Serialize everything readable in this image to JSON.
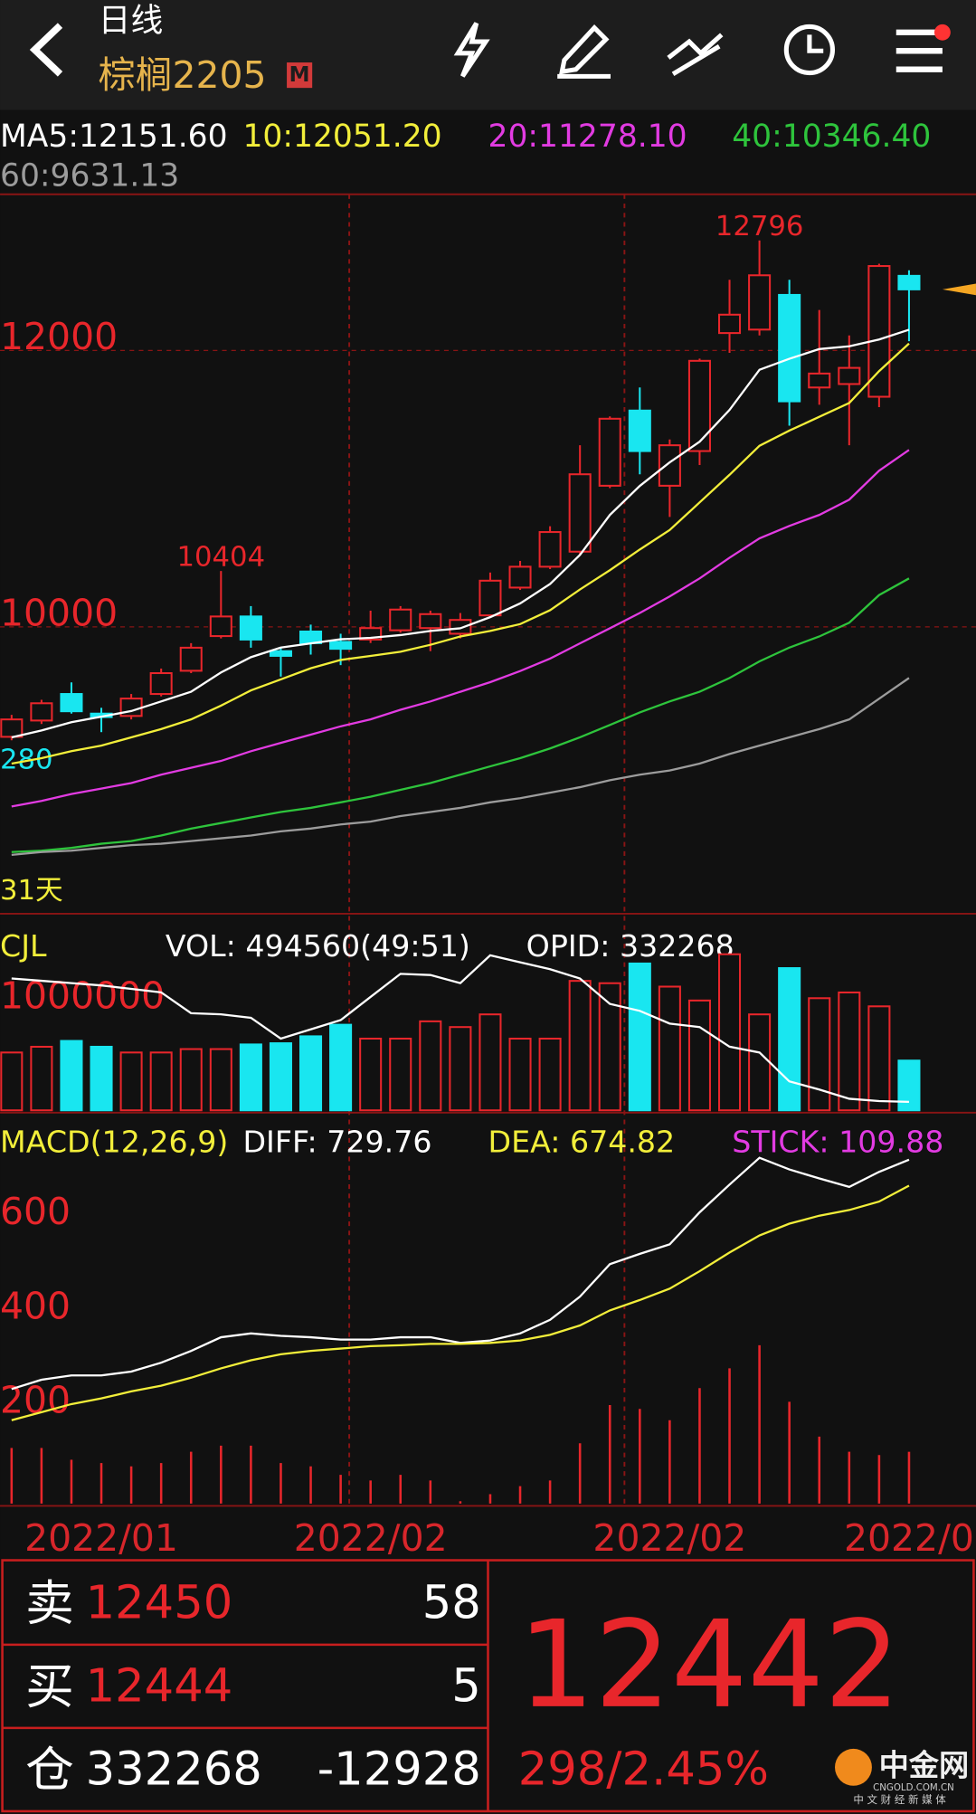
{
  "header": {
    "title": "日线",
    "symbol": "棕榈2205",
    "badge": "M"
  },
  "chart_data": [
    {
      "type": "candlestick",
      "categories": [
        null,
        null,
        null,
        "2022/01",
        null,
        null,
        null,
        null,
        null,
        null,
        null,
        null,
        "2022/02",
        null,
        null,
        null,
        null,
        null,
        null,
        null,
        null,
        null,
        "2022/02",
        null,
        null,
        null,
        null,
        null,
        null,
        null,
        "2022/0"
      ],
      "open": [
        9204,
        9322,
        9514,
        9372,
        9355,
        9514,
        9682,
        9933,
        10075,
        9824,
        9966,
        9891,
        9908,
        9975,
        9991,
        9950,
        10083,
        10284,
        10435,
        10544,
        11021,
        11565,
        11021,
        11272,
        12126,
        12151,
        12402,
        11732,
        11757,
        11665,
        12540
      ],
      "high": [
        9363,
        9472,
        9598,
        9414,
        9514,
        9698,
        9882,
        10404,
        10150,
        9849,
        10016,
        9950,
        10117,
        10150,
        10117,
        10100,
        10393,
        10477,
        10728,
        11314,
        11523,
        11732,
        11356,
        11941,
        12511,
        12796,
        12511,
        12293,
        12109,
        12628,
        12580
      ],
      "low": [
        9179,
        9297,
        9372,
        9238,
        9330,
        9497,
        9665,
        9916,
        9849,
        9640,
        9799,
        9723,
        9883,
        9958,
        9824,
        9916,
        10067,
        10267,
        10418,
        10519,
        11004,
        11104,
        10795,
        11171,
        11983,
        12109,
        11456,
        11607,
        11314,
        11590,
        12067
      ],
      "close": [
        9330,
        9447,
        9389,
        9347,
        9481,
        9665,
        9849,
        10075,
        9908,
        9790,
        9882,
        9841,
        9991,
        10125,
        10092,
        10050,
        10334,
        10435,
        10686,
        11104,
        11506,
        11272,
        11314,
        11925,
        12259,
        12544,
        11632,
        11833,
        11874,
        12611,
        12442
      ],
      "up_color": "#e8262b",
      "down_color": "#19e6f0",
      "series": [
        {
          "name": "MA5:12151.60",
          "color": "#ffffff",
          "values": [
            9200,
            9250,
            9310,
            9350,
            9390,
            9460,
            9530,
            9670,
            9780,
            9850,
            9880,
            9910,
            9920,
            9940,
            9970,
            9990,
            10070,
            10170,
            10310,
            10520,
            10810,
            11020,
            11190,
            11340,
            11570,
            11860,
            11940,
            12010,
            12030,
            12080,
            12150
          ]
        },
        {
          "name": "10:12051.20",
          "color": "#f2ee3a",
          "values": [
            9010,
            9050,
            9100,
            9140,
            9200,
            9260,
            9330,
            9430,
            9540,
            9620,
            9700,
            9760,
            9790,
            9820,
            9870,
            9930,
            9970,
            10020,
            10120,
            10270,
            10410,
            10560,
            10700,
            10900,
            11100,
            11310,
            11420,
            11520,
            11620,
            11850,
            12050
          ]
        },
        {
          "name": "20:11278.10",
          "color": "#e23be2",
          "values": [
            8700,
            8740,
            8790,
            8830,
            8870,
            8930,
            8980,
            9030,
            9100,
            9160,
            9220,
            9280,
            9330,
            9400,
            9460,
            9530,
            9600,
            9680,
            9770,
            9880,
            9990,
            10100,
            10220,
            10350,
            10500,
            10640,
            10730,
            10810,
            10920,
            11130,
            11280
          ]
        },
        {
          "name": "40:10346.40",
          "color": "#2ec43c",
          "values": [
            8370,
            8380,
            8400,
            8430,
            8450,
            8490,
            8540,
            8580,
            8620,
            8660,
            8690,
            8730,
            8770,
            8820,
            8870,
            8930,
            8990,
            9050,
            9120,
            9200,
            9290,
            9380,
            9460,
            9530,
            9630,
            9750,
            9850,
            9930,
            10030,
            10230,
            10350
          ]
        },
        {
          "name": "60:9631.13",
          "color": "#9c9c9c",
          "values": [
            8350,
            8370,
            8380,
            8400,
            8420,
            8430,
            8450,
            8470,
            8490,
            8520,
            8540,
            8570,
            8590,
            8630,
            8660,
            8690,
            8730,
            8760,
            8800,
            8840,
            8890,
            8930,
            8960,
            9010,
            9080,
            9140,
            9200,
            9260,
            9330,
            9480,
            9630
          ]
        }
      ],
      "ylim": [
        7924,
        13130
      ],
      "yticks": [
        10000,
        12000
      ],
      "grid": true,
      "annotations": [
        "280",
        "31天"
      ]
    },
    {
      "type": "volume",
      "title": "CJL",
      "series": [
        {
          "name": "VOL: 494560(49:51)",
          "values": [
            575000,
            632000,
            690000,
            632000,
            575000,
            575000,
            609000,
            609000,
            655000,
            667000,
            736000,
            851000,
            713000,
            713000,
            885000,
            828000,
            954000,
            713000,
            713000,
            1287000,
            1264000,
            1460000,
            1230000,
            1092000,
            1552000,
            954000,
            1414000,
            1115000,
            1172000,
            1034000,
            494560
          ]
        },
        {
          "name": "OPID: 332268",
          "color": "#ffffff",
          "axis": "y2",
          "values": [
            365630,
            365000,
            364380,
            363750,
            362810,
            361880,
            356250,
            355940,
            355000,
            349380,
            351880,
            354380,
            360630,
            366880,
            366560,
            364380,
            371880,
            370000,
            368130,
            365630,
            358750,
            356880,
            353440,
            352500,
            347190,
            345630,
            337810,
            335630,
            333130,
            332500,
            332268
          ]
        }
      ],
      "ylim": [
        0,
        1840000
      ],
      "yticks": [
        1000000
      ],
      "y2lim": [
        330000,
        380000
      ],
      "grid": false
    },
    {
      "type": "macd",
      "title": "MACD(12,26,9)",
      "series": [
        {
          "name": "DIFF: 729.76",
          "color": "#ffffff",
          "values": [
            243,
            263,
            272,
            272,
            280,
            299,
            324,
            353,
            361,
            356,
            353,
            348,
            348,
            353,
            353,
            341,
            346,
            361,
            390,
            439,
            508,
            530,
            550,
            618,
            677,
            734,
            709,
            690,
            672,
            704,
            729.76
          ]
        },
        {
          "name": "DEA: 674.82",
          "color": "#f2ee3a",
          "values": [
            177,
            194,
            211,
            223,
            238,
            250,
            267,
            287,
            304,
            317,
            324,
            329,
            334,
            336,
            339,
            339,
            341,
            346,
            358,
            378,
            410,
            432,
            456,
            493,
            533,
            569,
            594,
            611,
            623,
            641,
            674.82
          ]
        },
        {
          "name": "STICK: 109.88",
          "color": "#e23be2",
          "bar_color": "#e8262b",
          "values": [
            118,
            118,
            93,
            86,
            79,
            86,
            110,
            123,
            123,
            86,
            79,
            61,
            49,
            61,
            49,
            5,
            20,
            37,
            49,
            128,
            209,
            201,
            177,
            245,
            287,
            336,
            216,
            142,
            110,
            103,
            109.88
          ]
        }
      ],
      "ylim": [
        0,
        810
      ],
      "yticks": [
        200,
        400,
        600
      ],
      "grid": false
    }
  ],
  "quote": {
    "sell_label": "卖",
    "sell_price": 12450,
    "sell_volume": 58,
    "buy_label": "买",
    "buy_price": 12444,
    "buy_volume": 5,
    "position_label": "仓",
    "open_interest": 332268,
    "oi_change": -12928,
    "last_price": 12442,
    "change": "298/2.45%"
  },
  "logo": {
    "name": "中金网",
    "domain": "CNGOLD.COM.CN",
    "tagline": "中 文 财 经 新 媒 体"
  }
}
